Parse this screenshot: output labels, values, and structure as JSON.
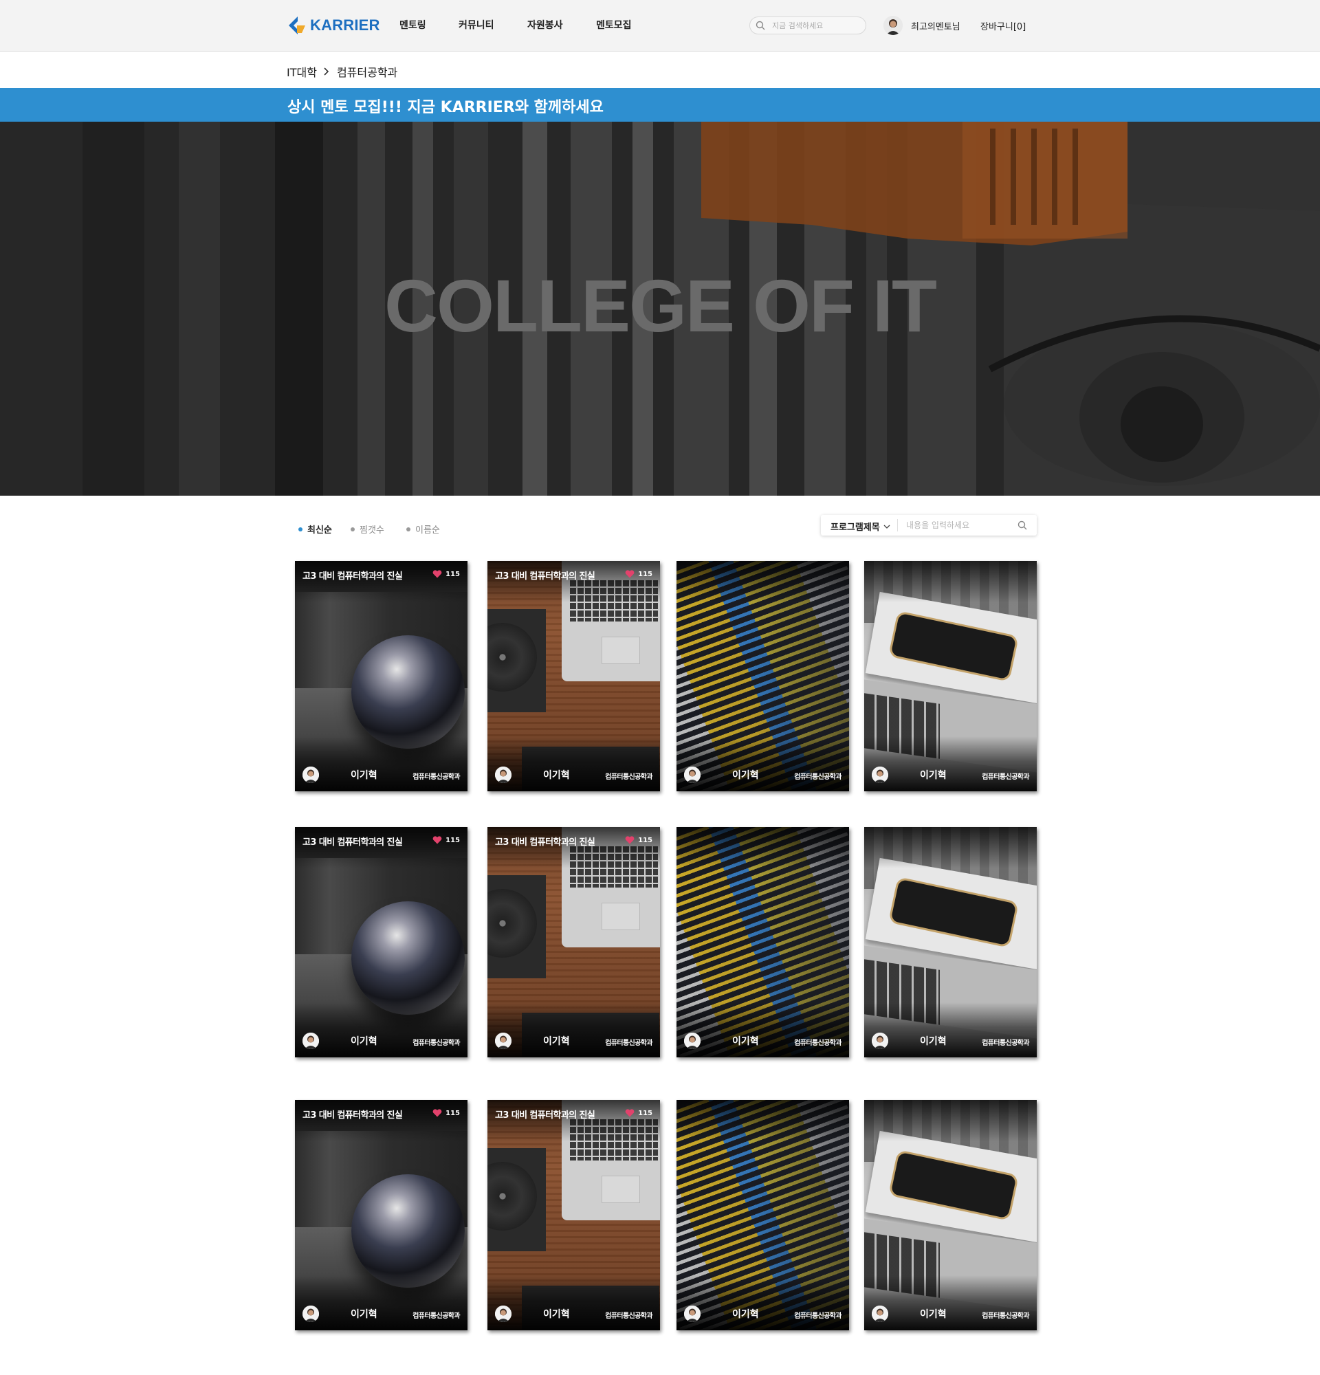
{
  "header": {
    "logo_text": "KARRIER",
    "nav": [
      "멘토링",
      "커뮤니티",
      "자원봉사",
      "멘토모집"
    ],
    "search_placeholder": "지금 검색하세요",
    "user_name": "최고의멘토님",
    "cart_label": "장바구니[0]"
  },
  "breadcrumb": {
    "items": [
      "IT대학",
      "컴퓨터공학과"
    ]
  },
  "notice": {
    "text": "상시 멘토 모집!!! 지금 KARRIER와 함께하세요"
  },
  "hero": {
    "title": "COLLEGE OF IT"
  },
  "sort": {
    "options": [
      "최신순",
      "찜갯수",
      "이름순"
    ],
    "active_index": 0,
    "active_color": "#2e8fd0",
    "inactive_color": "#999999"
  },
  "filter": {
    "select_label": "프로그램제목",
    "input_placeholder": "내용을 입력하세요"
  },
  "colors": {
    "brand": "#1d6fc0",
    "notice_bar": "#2e8fd0",
    "heart": "#e2426c"
  },
  "cards": [
    {
      "title": "고3 대비 컴퓨터학과의 진실",
      "likes": "115",
      "name": "이기혁",
      "dept": "컴퓨터통신공학과",
      "image": "sphere"
    },
    {
      "title": "고3 대비 컴퓨터학과의 진실",
      "likes": "115",
      "name": "이기혁",
      "dept": "컴퓨터통신공학과",
      "image": "desk"
    },
    {
      "title": "",
      "likes": "",
      "name": "이기혁",
      "dept": "컴퓨터통신공학과",
      "image": "code"
    },
    {
      "title": "",
      "likes": "",
      "name": "이기혁",
      "dept": "컴퓨터통신공학과",
      "image": "phone"
    },
    {
      "title": "고3 대비 컴퓨터학과의 진실",
      "likes": "115",
      "name": "이기혁",
      "dept": "컴퓨터통신공학과",
      "image": "sphere"
    },
    {
      "title": "고3 대비 컴퓨터학과의 진실",
      "likes": "115",
      "name": "이기혁",
      "dept": "컴퓨터통신공학과",
      "image": "desk"
    },
    {
      "title": "",
      "likes": "",
      "name": "이기혁",
      "dept": "컴퓨터통신공학과",
      "image": "code"
    },
    {
      "title": "",
      "likes": "",
      "name": "이기혁",
      "dept": "컴퓨터통신공학과",
      "image": "phone"
    },
    {
      "title": "고3 대비 컴퓨터학과의 진실",
      "likes": "115",
      "name": "이기혁",
      "dept": "컴퓨터통신공학과",
      "image": "sphere"
    },
    {
      "title": "고3 대비 컴퓨터학과의 진실",
      "likes": "115",
      "name": "이기혁",
      "dept": "컴퓨터통신공학과",
      "image": "desk"
    },
    {
      "title": "",
      "likes": "",
      "name": "이기혁",
      "dept": "컴퓨터통신공학과",
      "image": "code"
    },
    {
      "title": "",
      "likes": "",
      "name": "이기혁",
      "dept": "컴퓨터통신공학과",
      "image": "phone"
    }
  ]
}
